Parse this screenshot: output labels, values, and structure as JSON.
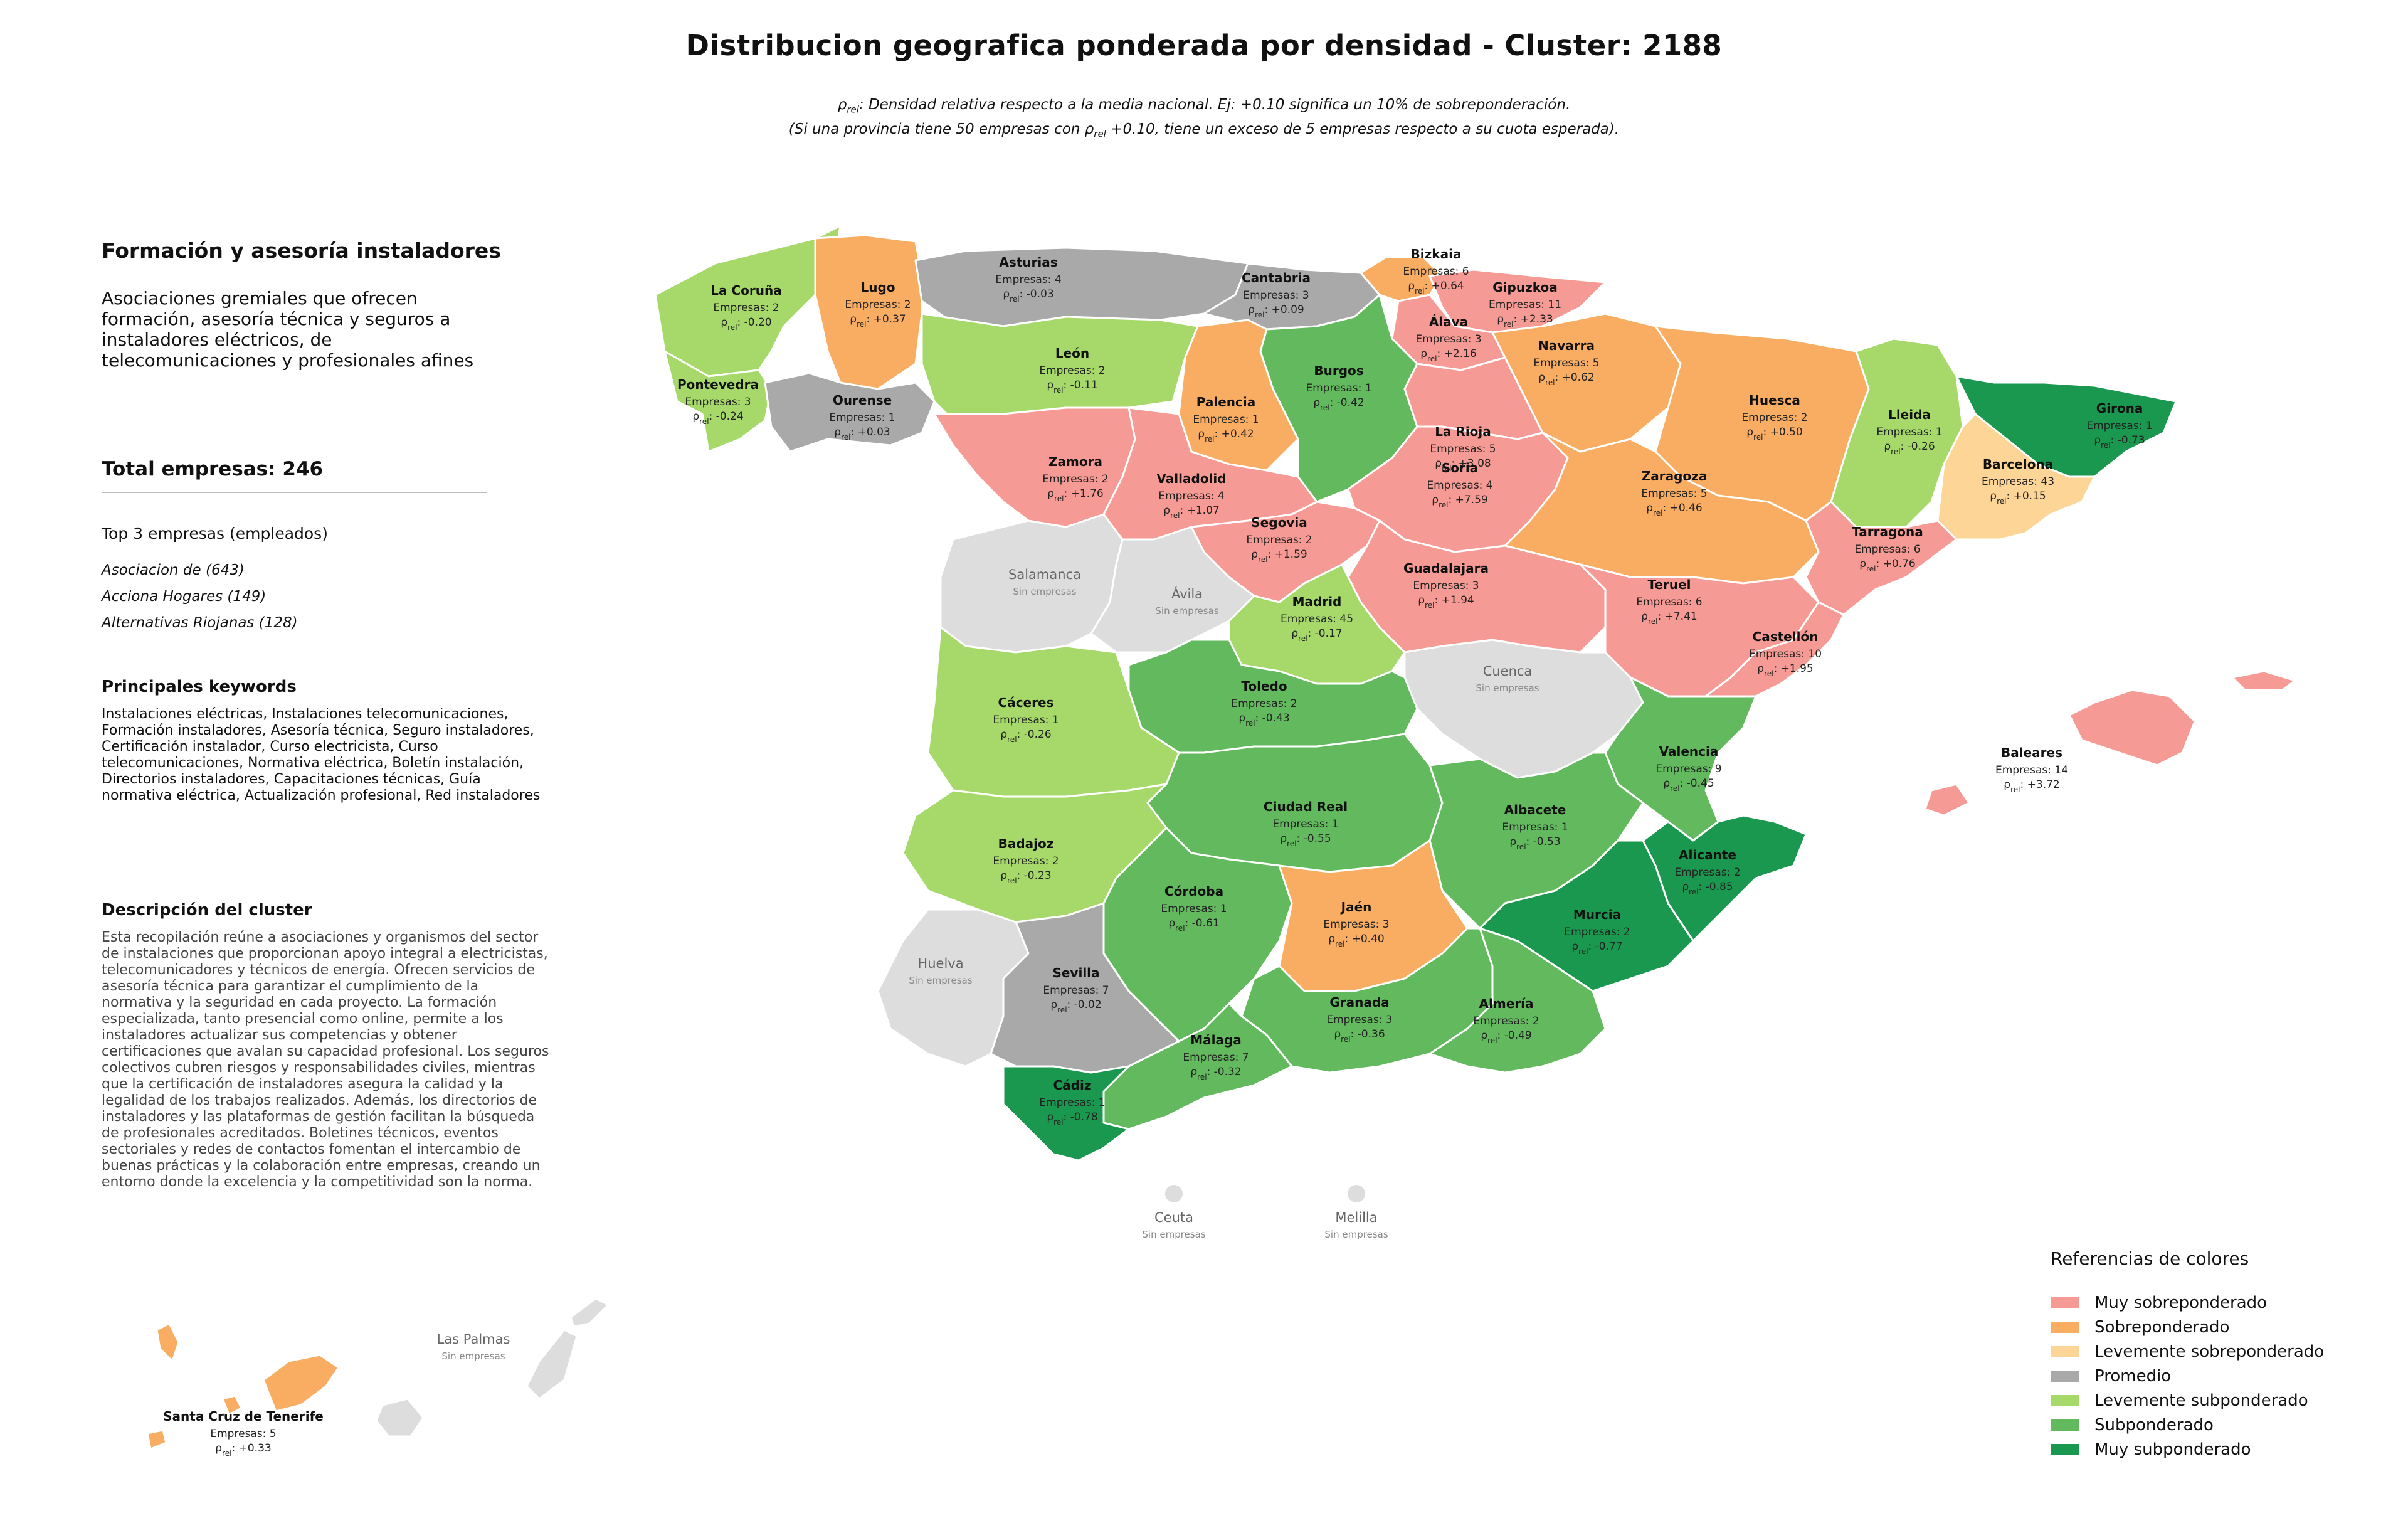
{
  "title": "Distribucion geografica ponderada por densidad - Cluster: 2188",
  "subtitle_line1_pre": "ρ",
  "subtitle_line1_sub": "rel",
  "subtitle_line1_post": ": Densidad relativa respecto a la media nacional. Ej: +0.10 significa un 10% de sobreponderación.",
  "subtitle_line2_pre": "(Si una provincia tiene 50 empresas con ρ",
  "subtitle_line2_sub": "rel",
  "subtitle_line2_post": " +0.10, tiene un exceso de 5 empresas respecto a su cuota esperada).",
  "cluster": {
    "name": "Formación y asesoría instaladores",
    "description": "Asociaciones gremiales que ofrecen formación, asesoría técnica y seguros a instaladores eléctricos, de telecomunicaciones y profesionales afines",
    "total_label": "Total empresas: 246",
    "top_heading": "Top 3 empresas (empleados)",
    "top": [
      "Asociacion de (643)",
      "Acciona Hogares (149)",
      "Alternativas Riojanas (128)"
    ],
    "keywords_heading": "Principales keywords",
    "keywords": "Instalaciones eléctricas, Instalaciones telecomunicaciones, Formación instaladores, Asesoría técnica, Seguro instaladores, Certificación instalador, Curso electricista, Curso telecomunicaciones, Normativa eléctrica, Boletín instalación, Directorios instaladores, Capacitaciones técnicas, Guía normativa eléctrica, Actualización profesional, Red instaladores",
    "desc_heading": "Descripción del cluster",
    "desc_text": "Esta recopilación reúne a asociaciones y organismos del sector de instalaciones que proporcionan apoyo integral a electricistas, telecomunicadores y técnicos de energía. Ofrecen servicios de asesoría técnica para garantizar el cumplimiento de la normativa y la seguridad en cada proyecto. La formación especializada, tanto presencial como online, permite a los instaladores actualizar sus competencias y obtener certificaciones que avalan su capacidad profesional. Los seguros colectivos cubren riesgos y responsabilidades civiles, mientras que la certificación de instaladores asegura la calidad y la legalidad de los trabajos realizados. Además, los directorios de instaladores y las plataformas de gestión facilitan la búsqueda de profesionales acreditados. Boletines técnicos, eventos sectoriales y redes de contactos fomentan el intercambio de buenas prácticas y la colaboración entre empresas, creando un entorno donde la excelencia y la competitividad son la norma."
  },
  "colors": {
    "muy_sobre": "#f59a94",
    "sobre": "#f9ad62",
    "lev_sobre": "#fdd597",
    "promedio": "#a9a9a9",
    "lev_sub": "#a6d96a",
    "sub": "#63b95e",
    "muy_sub": "#1a9850",
    "sin": "#dddddd"
  },
  "legend": {
    "title": "Referencias de colores",
    "items": [
      {
        "label": "Muy sobreponderado",
        "color": "#f59a94"
      },
      {
        "label": "Sobreponderado",
        "color": "#f9ad62"
      },
      {
        "label": "Levemente sobreponderado",
        "color": "#fdd597"
      },
      {
        "label": "Promedio",
        "color": "#a9a9a9"
      },
      {
        "label": "Levemente subponderado",
        "color": "#a6d96a"
      },
      {
        "label": "Subponderado",
        "color": "#63b95e"
      },
      {
        "label": "Muy subponderado",
        "color": "#1a9850"
      }
    ]
  },
  "empresas_prefix": "Empresas: ",
  "rho": "ρ",
  "rho_sub": "rel",
  "sin_empresas": "Sin empresas",
  "provinces": [
    {
      "key": "coruna",
      "name": "La Coruña",
      "empresas": "2",
      "rho": "-0.20",
      "cat": "lev_sub"
    },
    {
      "key": "lugo",
      "name": "Lugo",
      "empresas": "2",
      "rho": "+0.37",
      "cat": "sobre"
    },
    {
      "key": "asturias",
      "name": "Asturias",
      "empresas": "4",
      "rho": "-0.03",
      "cat": "promedio"
    },
    {
      "key": "cantabria",
      "name": "Cantabria",
      "empresas": "3",
      "rho": "+0.09",
      "cat": "promedio"
    },
    {
      "key": "bizkaia",
      "name": "Bizkaia",
      "empresas": "6",
      "rho": "+0.64",
      "cat": "sobre"
    },
    {
      "key": "gipuzkoa",
      "name": "Gipuzkoa",
      "empresas": "11",
      "rho": "+2.33",
      "cat": "muy_sobre"
    },
    {
      "key": "alava",
      "name": "Álava",
      "empresas": "3",
      "rho": "+2.16",
      "cat": "muy_sobre"
    },
    {
      "key": "navarra",
      "name": "Navarra",
      "empresas": "5",
      "rho": "+0.62",
      "cat": "sobre"
    },
    {
      "key": "pontevedra",
      "name": "Pontevedra",
      "empresas": "3",
      "rho": "-0.24",
      "cat": "lev_sub"
    },
    {
      "key": "ourense",
      "name": "Ourense",
      "empresas": "1",
      "rho": "+0.03",
      "cat": "promedio"
    },
    {
      "key": "leon",
      "name": "León",
      "empresas": "2",
      "rho": "-0.11",
      "cat": "lev_sub"
    },
    {
      "key": "palencia",
      "name": "Palencia",
      "empresas": "1",
      "rho": "+0.42",
      "cat": "sobre"
    },
    {
      "key": "burgos",
      "name": "Burgos",
      "empresas": "1",
      "rho": "-0.42",
      "cat": "sub"
    },
    {
      "key": "larioja",
      "name": "La Rioja",
      "empresas": "5",
      "rho": "+3.08",
      "cat": "muy_sobre"
    },
    {
      "key": "huesca",
      "name": "Huesca",
      "empresas": "2",
      "rho": "+0.50",
      "cat": "sobre"
    },
    {
      "key": "lleida",
      "name": "Lleida",
      "empresas": "1",
      "rho": "-0.26",
      "cat": "lev_sub"
    },
    {
      "key": "girona",
      "name": "Girona",
      "empresas": "1",
      "rho": "-0.73",
      "cat": "muy_sub"
    },
    {
      "key": "barcelona",
      "name": "Barcelona",
      "empresas": "43",
      "rho": "+0.15",
      "cat": "lev_sobre"
    },
    {
      "key": "zamora",
      "name": "Zamora",
      "empresas": "2",
      "rho": "+1.76",
      "cat": "muy_sobre"
    },
    {
      "key": "valladolid",
      "name": "Valladolid",
      "empresas": "4",
      "rho": "+1.07",
      "cat": "muy_sobre"
    },
    {
      "key": "soria",
      "name": "Soria",
      "empresas": "4",
      "rho": "+7.59",
      "cat": "muy_sobre"
    },
    {
      "key": "zaragoza",
      "name": "Zaragoza",
      "empresas": "5",
      "rho": "+0.46",
      "cat": "sobre"
    },
    {
      "key": "tarragona",
      "name": "Tarragona",
      "empresas": "6",
      "rho": "+0.76",
      "cat": "muy_sobre"
    },
    {
      "key": "segovia",
      "name": "Segovia",
      "empresas": "2",
      "rho": "+1.59",
      "cat": "muy_sobre"
    },
    {
      "key": "guadalajara",
      "name": "Guadalajara",
      "empresas": "3",
      "rho": "+1.94",
      "cat": "muy_sobre"
    },
    {
      "key": "teruel",
      "name": "Teruel",
      "empresas": "6",
      "rho": "+7.41",
      "cat": "muy_sobre"
    },
    {
      "key": "castellon",
      "name": "Castellón",
      "empresas": "10",
      "rho": "+1.95",
      "cat": "muy_sobre"
    },
    {
      "key": "madrid",
      "name": "Madrid",
      "empresas": "45",
      "rho": "-0.17",
      "cat": "lev_sub"
    },
    {
      "key": "toledo",
      "name": "Toledo",
      "empresas": "2",
      "rho": "-0.43",
      "cat": "sub"
    },
    {
      "key": "caceres",
      "name": "Cáceres",
      "empresas": "1",
      "rho": "-0.26",
      "cat": "lev_sub"
    },
    {
      "key": "valencia",
      "name": "Valencia",
      "empresas": "9",
      "rho": "-0.45",
      "cat": "sub"
    },
    {
      "key": "baleares",
      "name": "Baleares",
      "empresas": "14",
      "rho": "+3.72",
      "cat": "muy_sobre"
    },
    {
      "key": "ciudadreal",
      "name": "Ciudad Real",
      "empresas": "1",
      "rho": "-0.55",
      "cat": "sub"
    },
    {
      "key": "albacete",
      "name": "Albacete",
      "empresas": "1",
      "rho": "-0.53",
      "cat": "sub"
    },
    {
      "key": "badajoz",
      "name": "Badajoz",
      "empresas": "2",
      "rho": "-0.23",
      "cat": "lev_sub"
    },
    {
      "key": "alicante",
      "name": "Alicante",
      "empresas": "2",
      "rho": "-0.85",
      "cat": "muy_sub"
    },
    {
      "key": "cordoba",
      "name": "Córdoba",
      "empresas": "1",
      "rho": "-0.61",
      "cat": "sub"
    },
    {
      "key": "jaen",
      "name": "Jaén",
      "empresas": "3",
      "rho": "+0.40",
      "cat": "sobre"
    },
    {
      "key": "murcia",
      "name": "Murcia",
      "empresas": "2",
      "rho": "-0.77",
      "cat": "muy_sub"
    },
    {
      "key": "sevilla",
      "name": "Sevilla",
      "empresas": "7",
      "rho": "-0.02",
      "cat": "promedio"
    },
    {
      "key": "granada",
      "name": "Granada",
      "empresas": "3",
      "rho": "-0.36",
      "cat": "sub"
    },
    {
      "key": "almeria",
      "name": "Almería",
      "empresas": "2",
      "rho": "-0.49",
      "cat": "sub"
    },
    {
      "key": "malaga",
      "name": "Málaga",
      "empresas": "7",
      "rho": "-0.32",
      "cat": "sub"
    },
    {
      "key": "cadiz",
      "name": "Cádiz",
      "empresas": "1",
      "rho": "-0.78",
      "cat": "muy_sub"
    },
    {
      "key": "tenerife",
      "name": "Santa Cruz de Tenerife",
      "empresas": "5",
      "rho": "+0.33",
      "cat": "sobre"
    }
  ],
  "empty_provinces": [
    {
      "key": "salamanca",
      "name": "Salamanca",
      "cat": "sin"
    },
    {
      "key": "avila",
      "name": "Ávila",
      "cat": "sin"
    },
    {
      "key": "cuenca",
      "name": "Cuenca",
      "cat": "sin"
    },
    {
      "key": "huelva",
      "name": "Huelva",
      "cat": "sin"
    },
    {
      "key": "ceuta",
      "name": "Ceuta",
      "cat": "sin"
    },
    {
      "key": "melilla",
      "name": "Melilla",
      "cat": "sin"
    },
    {
      "key": "laspalmas",
      "name": "Las Palmas",
      "cat": "sin"
    }
  ]
}
